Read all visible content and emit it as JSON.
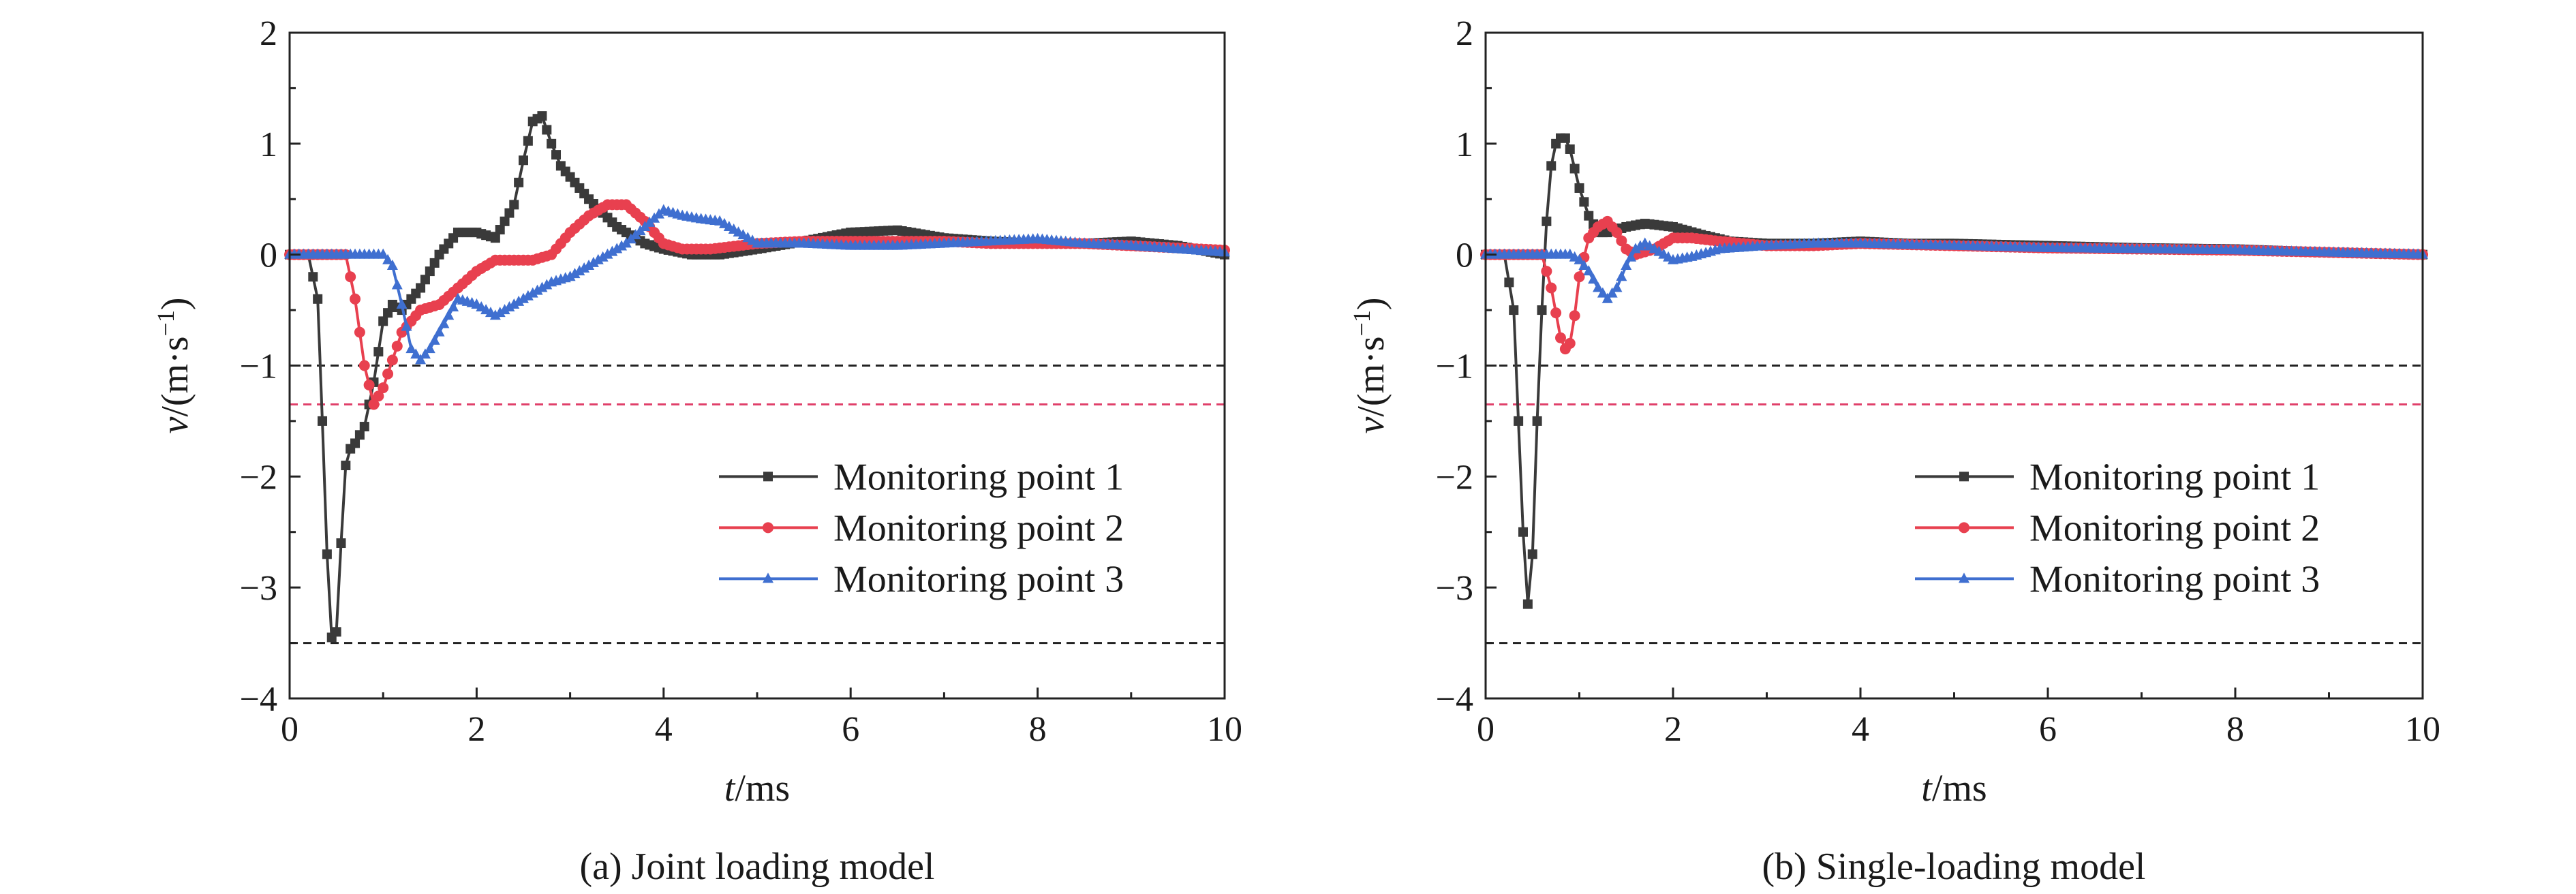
{
  "colors": {
    "series1": "#3a3a3a",
    "series2": "#e8404f",
    "series3": "#3f6fd0",
    "ref_black": "#222222",
    "ref_red": "#e0406a"
  },
  "chart_data": [
    {
      "type": "line",
      "caption": "(a) Joint loading model",
      "xlabel_italic": "t",
      "xlabel_unit": "/ms",
      "ylabel_italic": "v",
      "ylabel_unit": "/(m·s",
      "ylabel_sup": "−1",
      "ylabel_close": ")",
      "xlim": [
        0,
        10
      ],
      "ylim": [
        -4,
        2
      ],
      "xticks": [
        0,
        2,
        4,
        6,
        8,
        10
      ],
      "yticks": [
        -4,
        -3,
        -2,
        -1,
        0,
        1,
        2
      ],
      "xtick_labels": [
        "0",
        "2",
        "4",
        "6",
        "8",
        "10"
      ],
      "ytick_labels": [
        "−4",
        "−3",
        "−2",
        "−1",
        "0",
        "1",
        "2"
      ],
      "grid": false,
      "legend_position": "right",
      "reference_lines": [
        {
          "y": -1.0,
          "color": "black"
        },
        {
          "y": -1.35,
          "color": "red"
        },
        {
          "y": -3.5,
          "color": "black"
        }
      ],
      "series": [
        {
          "name": "Monitoring point 1",
          "marker": "square",
          "x": [
            0,
            0.2,
            0.3,
            0.35,
            0.4,
            0.45,
            0.5,
            0.55,
            0.6,
            0.65,
            0.7,
            0.8,
            0.9,
            1.0,
            1.1,
            1.2,
            1.4,
            1.6,
            1.8,
            2.0,
            2.2,
            2.4,
            2.5,
            2.6,
            2.7,
            2.8,
            2.9,
            3.0,
            3.2,
            3.5,
            3.8,
            4.0,
            4.3,
            4.6,
            5.0,
            5.5,
            6.0,
            6.5,
            7.0,
            7.5,
            8.0,
            8.5,
            9.0,
            9.5,
            10.0
          ],
          "y": [
            0,
            0,
            -0.4,
            -1.5,
            -2.7,
            -3.45,
            -3.4,
            -2.6,
            -1.9,
            -1.75,
            -1.7,
            -1.55,
            -1.15,
            -0.6,
            -0.45,
            -0.5,
            -0.3,
            0.0,
            0.2,
            0.2,
            0.15,
            0.45,
            0.85,
            1.2,
            1.25,
            1.0,
            0.8,
            0.7,
            0.5,
            0.25,
            0.1,
            0.05,
            0.0,
            0.0,
            0.05,
            0.12,
            0.2,
            0.22,
            0.15,
            0.12,
            0.1,
            0.1,
            0.12,
            0.08,
            0.0
          ]
        },
        {
          "name": "Monitoring point 2",
          "marker": "circle",
          "x": [
            0,
            0.6,
            0.7,
            0.8,
            0.9,
            1.0,
            1.1,
            1.2,
            1.4,
            1.6,
            1.8,
            2.0,
            2.2,
            2.4,
            2.6,
            2.8,
            3.0,
            3.2,
            3.4,
            3.6,
            3.8,
            4.0,
            4.2,
            4.5,
            5.0,
            5.5,
            6.0,
            6.5,
            7.0,
            7.5,
            8.0,
            8.5,
            9.0,
            9.5,
            10.0
          ],
          "y": [
            0,
            0,
            -0.4,
            -1.0,
            -1.35,
            -1.2,
            -0.95,
            -0.7,
            -0.5,
            -0.45,
            -0.3,
            -0.15,
            -0.05,
            -0.05,
            -0.05,
            0.0,
            0.2,
            0.35,
            0.45,
            0.45,
            0.3,
            0.1,
            0.05,
            0.05,
            0.1,
            0.12,
            0.12,
            0.12,
            0.12,
            0.1,
            0.1,
            0.1,
            0.08,
            0.06,
            0.04
          ]
        },
        {
          "name": "Monitoring point 3",
          "marker": "triangle",
          "x": [
            0,
            1.0,
            1.1,
            1.2,
            1.3,
            1.4,
            1.5,
            1.6,
            1.8,
            2.0,
            2.2,
            2.4,
            2.6,
            2.8,
            3.0,
            3.2,
            3.4,
            3.6,
            3.8,
            4.0,
            4.2,
            4.4,
            4.6,
            4.8,
            5.0,
            5.5,
            6.0,
            6.5,
            7.0,
            7.5,
            8.0,
            8.5,
            9.0,
            9.5,
            10.0
          ],
          "y": [
            0,
            0,
            -0.1,
            -0.45,
            -0.85,
            -0.95,
            -0.85,
            -0.7,
            -0.4,
            -0.45,
            -0.55,
            -0.45,
            -0.35,
            -0.25,
            -0.2,
            -0.1,
            0.0,
            0.1,
            0.25,
            0.4,
            0.35,
            0.32,
            0.3,
            0.2,
            0.1,
            0.1,
            0.08,
            0.08,
            0.1,
            0.12,
            0.14,
            0.1,
            0.08,
            0.05,
            0.02
          ]
        }
      ]
    },
    {
      "type": "line",
      "caption": "(b) Single-loading model",
      "xlabel_italic": "t",
      "xlabel_unit": "/ms",
      "ylabel_italic": "v",
      "ylabel_unit": "/(m·s",
      "ylabel_sup": "−1",
      "ylabel_close": ")",
      "xlim": [
        0,
        10
      ],
      "ylim": [
        -4,
        2
      ],
      "xticks": [
        0,
        2,
        4,
        6,
        8,
        10
      ],
      "yticks": [
        -4,
        -3,
        -2,
        -1,
        0,
        1,
        2
      ],
      "xtick_labels": [
        "0",
        "2",
        "4",
        "6",
        "8",
        "10"
      ],
      "ytick_labels": [
        "−4",
        "−3",
        "−2",
        "−1",
        "0",
        "1",
        "2"
      ],
      "grid": false,
      "legend_position": "right",
      "reference_lines": [
        {
          "y": -1.0,
          "color": "black"
        },
        {
          "y": -1.35,
          "color": "red"
        },
        {
          "y": -3.5,
          "color": "black"
        }
      ],
      "series": [
        {
          "name": "Monitoring point 1",
          "marker": "square",
          "x": [
            0,
            0.2,
            0.3,
            0.35,
            0.4,
            0.45,
            0.5,
            0.55,
            0.6,
            0.65,
            0.7,
            0.75,
            0.8,
            0.85,
            0.9,
            1.0,
            1.1,
            1.2,
            1.3,
            1.5,
            1.7,
            2.0,
            2.3,
            2.6,
            3.0,
            3.5,
            4.0,
            4.5,
            5.0,
            6.0,
            7.0,
            8.0,
            9.0,
            10.0
          ],
          "y": [
            0,
            0,
            -0.5,
            -1.5,
            -2.5,
            -3.15,
            -2.7,
            -1.5,
            -0.5,
            0.3,
            0.8,
            1.0,
            1.05,
            1.05,
            0.95,
            0.6,
            0.35,
            0.2,
            0.2,
            0.25,
            0.28,
            0.25,
            0.18,
            0.12,
            0.1,
            0.1,
            0.12,
            0.1,
            0.1,
            0.08,
            0.06,
            0.05,
            0.02,
            0.0
          ]
        },
        {
          "name": "Monitoring point 2",
          "marker": "circle",
          "x": [
            0,
            0.6,
            0.7,
            0.8,
            0.85,
            0.9,
            0.95,
            1.0,
            1.1,
            1.2,
            1.3,
            1.4,
            1.5,
            1.6,
            1.8,
            2.0,
            2.2,
            2.5,
            3.0,
            3.5,
            4.0,
            5.0,
            6.0,
            7.0,
            8.0,
            9.0,
            10.0
          ],
          "y": [
            0,
            0,
            -0.3,
            -0.75,
            -0.85,
            -0.8,
            -0.55,
            -0.2,
            0.15,
            0.25,
            0.3,
            0.2,
            0.05,
            0.0,
            0.05,
            0.15,
            0.15,
            0.12,
            0.08,
            0.08,
            0.1,
            0.08,
            0.06,
            0.05,
            0.04,
            0.02,
            0.0
          ]
        },
        {
          "name": "Monitoring point 3",
          "marker": "triangle",
          "x": [
            0,
            0.9,
            1.0,
            1.1,
            1.2,
            1.3,
            1.4,
            1.5,
            1.6,
            1.7,
            1.8,
            2.0,
            2.2,
            2.5,
            3.0,
            3.5,
            4.0,
            5.0,
            6.0,
            7.0,
            8.0,
            9.0,
            10.0
          ],
          "y": [
            0,
            0,
            -0.05,
            -0.15,
            -0.3,
            -0.4,
            -0.3,
            -0.1,
            0.05,
            0.1,
            0.05,
            -0.05,
            -0.02,
            0.05,
            0.08,
            0.1,
            0.1,
            0.08,
            0.06,
            0.05,
            0.04,
            0.02,
            0.0
          ]
        }
      ]
    }
  ]
}
